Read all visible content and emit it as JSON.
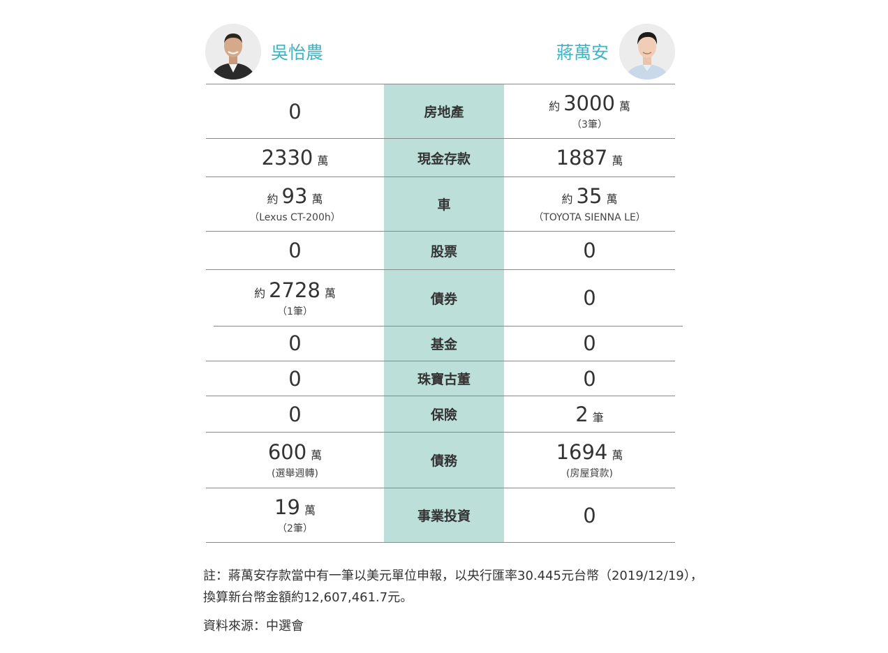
{
  "candidates": {
    "left": {
      "name": "吳怡農"
    },
    "right": {
      "name": "蔣萬安"
    }
  },
  "rows": [
    {
      "category": "房地產",
      "left": {
        "prefix": "",
        "value": "0",
        "unit": "",
        "sub": ""
      },
      "right": {
        "prefix": "約",
        "value": "3000",
        "unit": "萬",
        "sub": "（3筆）"
      }
    },
    {
      "category": "現金存款",
      "left": {
        "prefix": "",
        "value": "2330",
        "unit": "萬",
        "sub": ""
      },
      "right": {
        "prefix": "",
        "value": "1887",
        "unit": "萬",
        "sub": ""
      }
    },
    {
      "category": "車",
      "left": {
        "prefix": "約",
        "value": "93",
        "unit": "萬",
        "sub": "（Lexus CT-200h）"
      },
      "right": {
        "prefix": "約",
        "value": "35",
        "unit": "萬",
        "sub": "（TOYOTA SIENNA LE）"
      }
    },
    {
      "category": "股票",
      "left": {
        "prefix": "",
        "value": "0",
        "unit": "",
        "sub": ""
      },
      "right": {
        "prefix": "",
        "value": "0",
        "unit": "",
        "sub": ""
      }
    },
    {
      "category": "債券",
      "left": {
        "prefix": "約",
        "value": "2728",
        "unit": "萬",
        "sub": "（1筆）"
      },
      "right": {
        "prefix": "",
        "value": "0",
        "unit": "",
        "sub": ""
      }
    },
    {
      "category": "基金",
      "left": {
        "prefix": "",
        "value": "0",
        "unit": "",
        "sub": ""
      },
      "right": {
        "prefix": "",
        "value": "0",
        "unit": "",
        "sub": ""
      }
    },
    {
      "category": "珠寶古董",
      "left": {
        "prefix": "",
        "value": "0",
        "unit": "",
        "sub": ""
      },
      "right": {
        "prefix": "",
        "value": "0",
        "unit": "",
        "sub": ""
      }
    },
    {
      "category": "保險",
      "left": {
        "prefix": "",
        "value": "0",
        "unit": "",
        "sub": ""
      },
      "right": {
        "prefix": "",
        "value": "2",
        "unit": "筆",
        "sub": ""
      }
    },
    {
      "category": "債務",
      "left": {
        "prefix": "",
        "value": "600",
        "unit": "萬",
        "sub": "(選舉週轉)"
      },
      "right": {
        "prefix": "",
        "value": "1694",
        "unit": "萬",
        "sub": "(房屋貸款)"
      }
    },
    {
      "category": "事業投資",
      "left": {
        "prefix": "",
        "value": "19",
        "unit": "萬",
        "sub": "（2筆）"
      },
      "right": {
        "prefix": "",
        "value": "0",
        "unit": "",
        "sub": ""
      }
    }
  ],
  "note_line1": "註：蔣萬安存款當中有一筆以美元單位申報，以央行匯率30.445元台幣（2019/12/19），",
  "note_line2": "換算新台幣金額約12,607,461.7元。",
  "source": "資料來源：中選會",
  "colors": {
    "name": "#3db3c4",
    "category_bg": "#bce0d9",
    "rule": "#888888"
  }
}
